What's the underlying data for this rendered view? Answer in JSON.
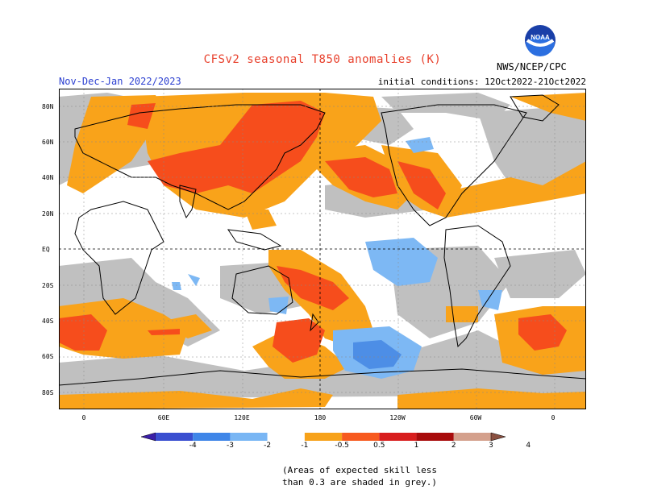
{
  "title": "CFSv2 seasonal T850 anomalies (K)",
  "season": "Nov-Dec-Jan 2022/2023",
  "initial_conditions": "initial conditions: 12Oct2022-21Oct2022",
  "agency": "NWS/NCEP/CPC",
  "logo_text": "NOAA",
  "latitude_labels": [
    "80N",
    "60N",
    "40N",
    "20N",
    "EQ",
    "20S",
    "40S",
    "60S",
    "80S"
  ],
  "longitude_labels": [
    "0",
    "60E",
    "120E",
    "180",
    "120W",
    "60W",
    "0"
  ],
  "colorbar": {
    "labels": [
      "-4",
      "-3",
      "-2",
      "-1",
      "-0.5",
      "0.5",
      "1",
      "2",
      "3",
      "4"
    ],
    "colors": [
      "#3b1fa8",
      "#3a4fd0",
      "#3f86e8",
      "#79b6f4",
      "#ffffff",
      "#f7a21a",
      "#f75a1f",
      "#d81e1e",
      "#a80c0c",
      "#d4a08c",
      "#8a5040"
    ]
  },
  "skill_note": "(Areas of expected skill less\nthan 0.3 are shaded in grey.)",
  "colors": {
    "grey": "#c0c0c0",
    "light_orange": "#f9a31a",
    "orange_red": "#f64d1c",
    "light_blue": "#7db8f4",
    "blue": "#4d8ee6"
  }
}
